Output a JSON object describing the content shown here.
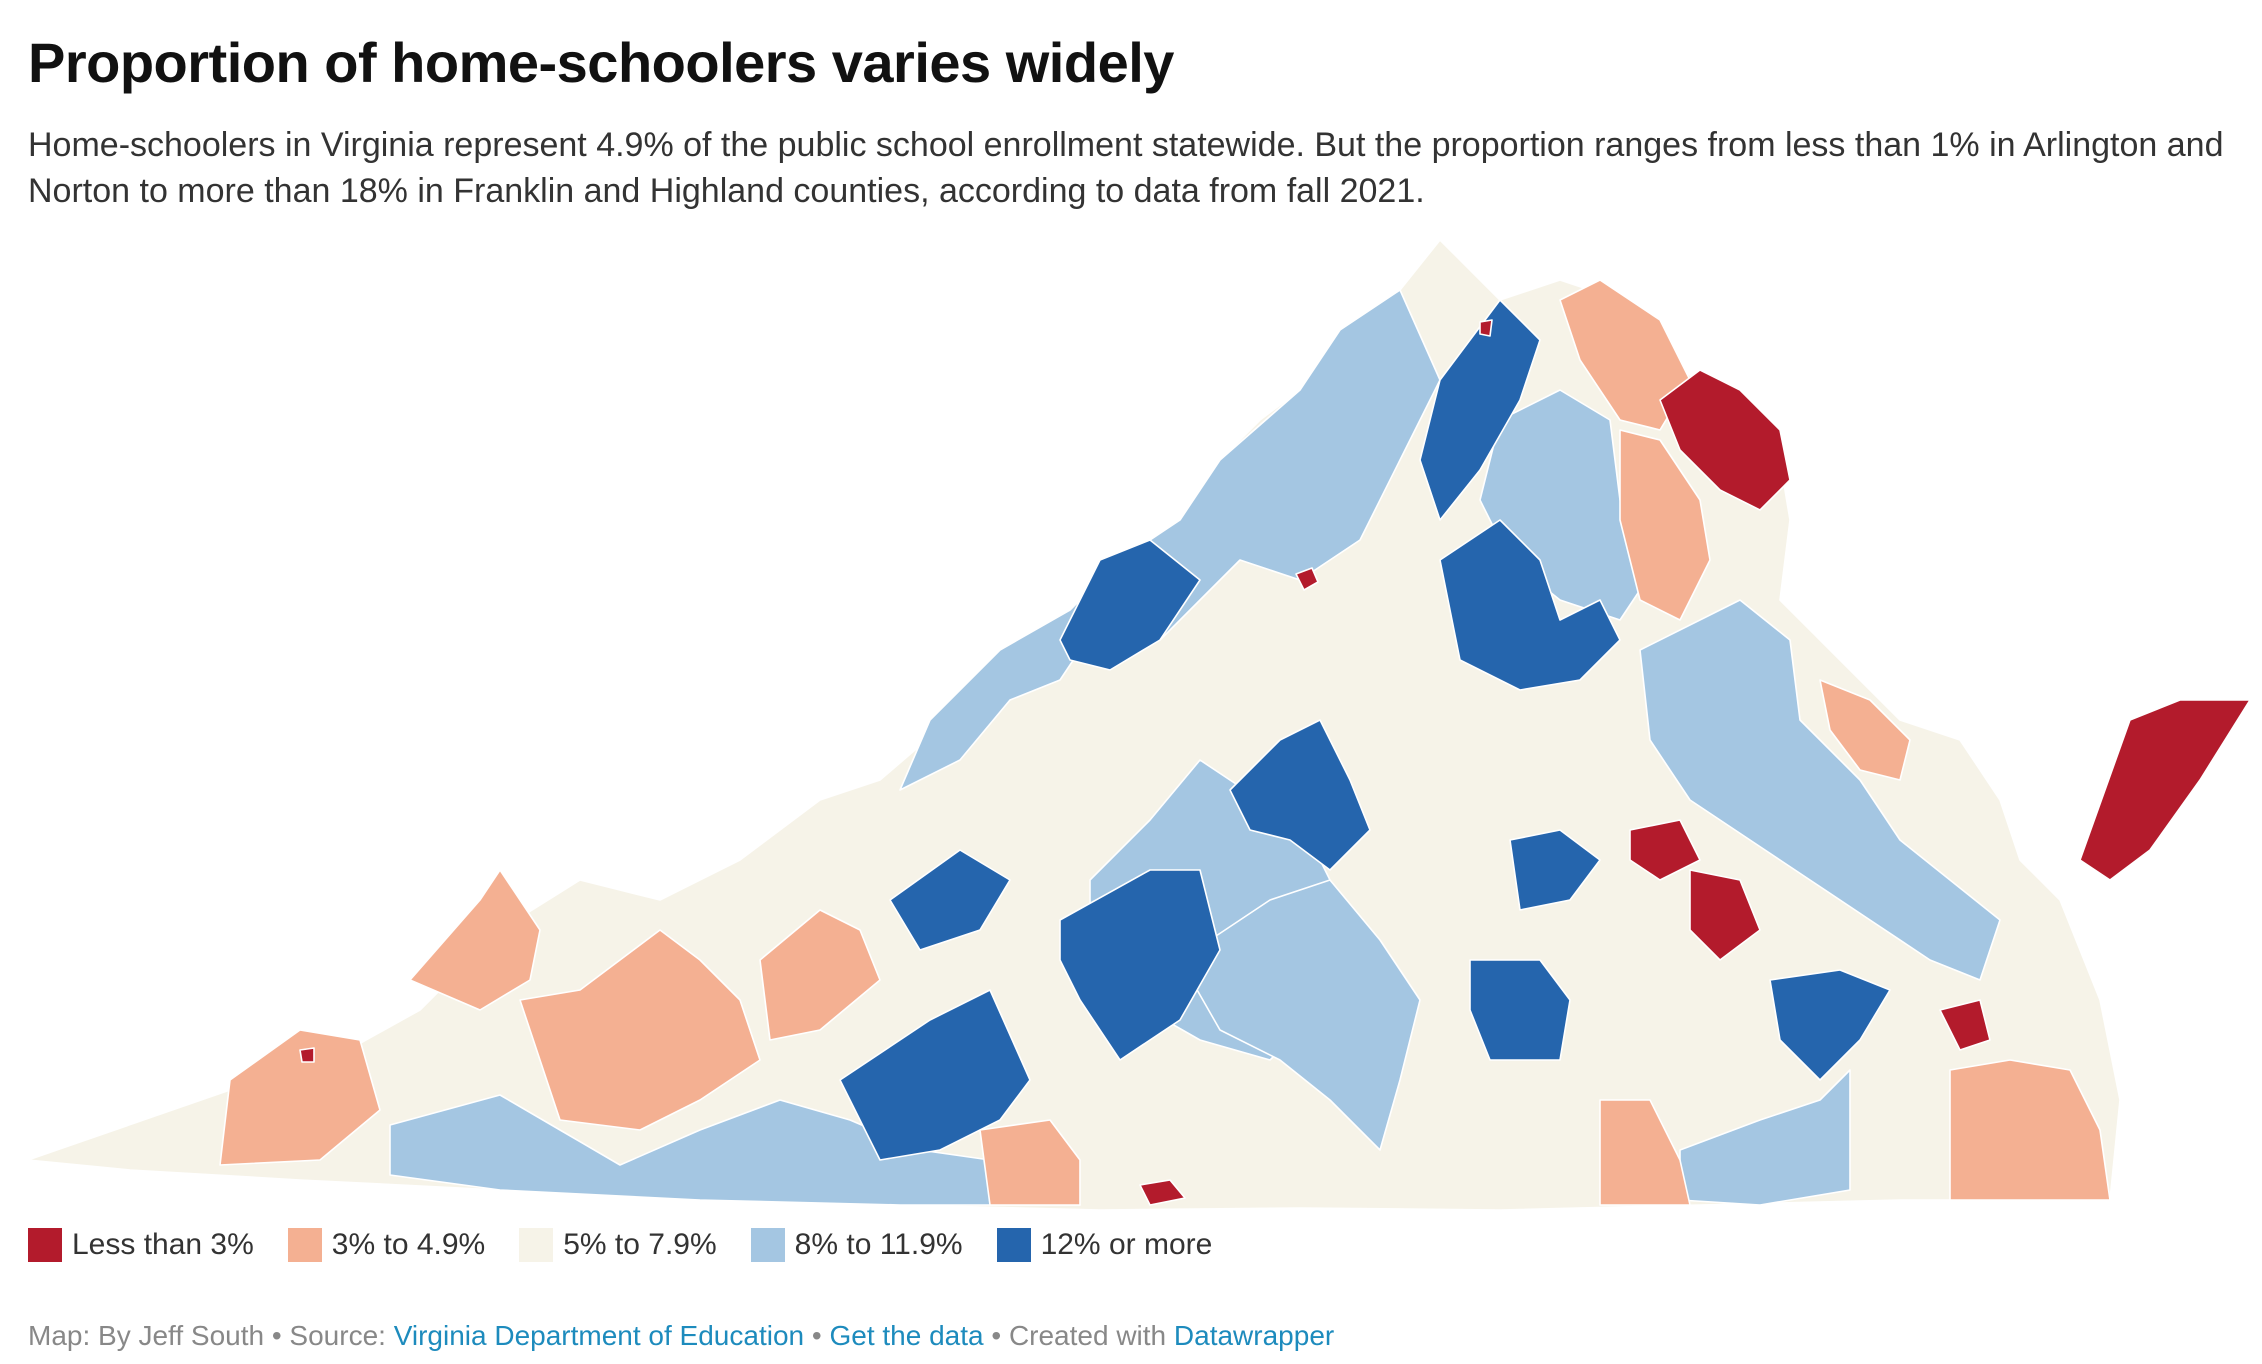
{
  "title": "Proportion of home-schoolers varies widely",
  "subtitle": "Home-schoolers in Virginia represent 4.9% of the public school enrollment statewide. But the proportion ranges from less than 1% in Arlington and Norton to more than 18% in Franklin and Highland counties, according to data from fall 2021.",
  "legend": [
    {
      "label": "Less than 3%",
      "color": "#b31b2c"
    },
    {
      "label": "3% to 4.9%",
      "color": "#f4b092"
    },
    {
      "label": "5% to 7.9%",
      "color": "#f6f3e8"
    },
    {
      "label": "8% to 11.9%",
      "color": "#a4c6e2"
    },
    {
      "label": "12% or more",
      "color": "#2565ad"
    }
  ],
  "footer": {
    "prefix": "Map: By Jeff South • Source: ",
    "source_link": "Virginia Department of Education",
    "sep1": " • ",
    "data_link": "Get the data",
    "sep2": " • Created with ",
    "credit_link": "Datawrapper"
  },
  "colors": {
    "link": "#1d8bbd",
    "outline": "#ffffff"
  }
}
